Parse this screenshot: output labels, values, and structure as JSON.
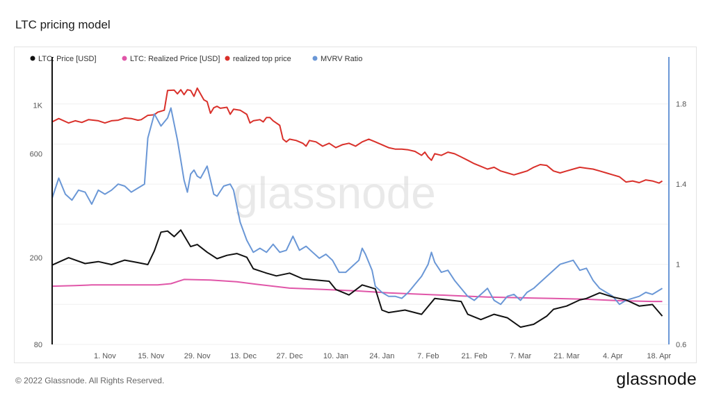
{
  "page": {
    "title": "LTC pricing model",
    "footer": "© 2022 Glassnode. All Rights Reserved.",
    "brand": "glassnode",
    "watermark": "glassnode"
  },
  "chart_data": {
    "type": "line",
    "legend_position": "top-left",
    "grid": "horizontal",
    "x_ticks": [
      "1. Nov",
      "15. Nov",
      "29. Nov",
      "13. Dec",
      "27. Dec",
      "10. Jan",
      "24. Jan",
      "7. Feb",
      "21. Feb",
      "7. Mar",
      "21. Mar",
      "4. Apr",
      "18. Apr"
    ],
    "x_tick_days": [
      14,
      28,
      42,
      56,
      70,
      84,
      98,
      112,
      126,
      140,
      154,
      168,
      182
    ],
    "x_range_days": [
      -2,
      185
    ],
    "x_start_date": "2021-10-20",
    "y_left": {
      "scale": "log",
      "range": [
        80,
        1550
      ],
      "ticks": [
        80,
        200,
        600,
        1000
      ],
      "tick_labels": [
        "80",
        "200",
        "600",
        "1K"
      ]
    },
    "y_right": {
      "scale": "linear",
      "range": [
        0.6,
        2.0
      ],
      "ticks": [
        0.6,
        1.0,
        1.4,
        1.8
      ],
      "tick_labels": [
        "0.6",
        "1",
        "1.4",
        "1.8"
      ]
    },
    "series": [
      {
        "name": "LTC: Price [USD]",
        "color": "#111111",
        "axis": "left",
        "points": [
          [
            -2,
            185
          ],
          [
            3,
            200
          ],
          [
            8,
            188
          ],
          [
            12,
            192
          ],
          [
            16,
            186
          ],
          [
            20,
            195
          ],
          [
            24,
            190
          ],
          [
            27,
            186
          ],
          [
            29,
            215
          ],
          [
            31,
            262
          ],
          [
            33,
            265
          ],
          [
            35,
            250
          ],
          [
            37,
            268
          ],
          [
            40,
            225
          ],
          [
            42,
            230
          ],
          [
            45,
            212
          ],
          [
            48,
            198
          ],
          [
            51,
            205
          ],
          [
            54,
            209
          ],
          [
            57,
            201
          ],
          [
            59,
            178
          ],
          [
            63,
            170
          ],
          [
            66,
            165
          ],
          [
            70,
            170
          ],
          [
            74,
            160
          ],
          [
            78,
            158
          ],
          [
            82,
            156
          ],
          [
            84,
            143
          ],
          [
            88,
            135
          ],
          [
            92,
            150
          ],
          [
            96,
            144
          ],
          [
            98,
            115
          ],
          [
            100,
            112
          ],
          [
            105,
            115
          ],
          [
            110,
            110
          ],
          [
            114,
            130
          ],
          [
            118,
            128
          ],
          [
            122,
            126
          ],
          [
            124,
            110
          ],
          [
            128,
            104
          ],
          [
            132,
            110
          ],
          [
            136,
            106
          ],
          [
            140,
            96
          ],
          [
            144,
            99
          ],
          [
            148,
            108
          ],
          [
            150,
            116
          ],
          [
            154,
            120
          ],
          [
            158,
            128
          ],
          [
            160,
            130
          ],
          [
            164,
            138
          ],
          [
            168,
            132
          ],
          [
            172,
            128
          ],
          [
            176,
            120
          ],
          [
            180,
            122
          ],
          [
            183,
            108
          ]
        ]
      },
      {
        "name": "LTC: Realized Price [USD]",
        "color": "#e056a8",
        "axis": "left",
        "points": [
          [
            -2,
            148
          ],
          [
            5,
            149
          ],
          [
            10,
            150
          ],
          [
            20,
            150
          ],
          [
            30,
            150
          ],
          [
            34,
            152
          ],
          [
            38,
            159
          ],
          [
            46,
            158
          ],
          [
            54,
            155
          ],
          [
            60,
            151
          ],
          [
            70,
            145
          ],
          [
            80,
            143
          ],
          [
            90,
            141
          ],
          [
            100,
            138
          ],
          [
            110,
            136
          ],
          [
            120,
            134
          ],
          [
            130,
            132
          ],
          [
            140,
            131
          ],
          [
            150,
            130
          ],
          [
            160,
            129
          ],
          [
            170,
            127
          ],
          [
            180,
            126
          ],
          [
            183,
            126
          ]
        ]
      },
      {
        "name": "realized top price",
        "color": "#d9302a",
        "axis": "left",
        "points": [
          [
            -2,
            840
          ],
          [
            0,
            870
          ],
          [
            3,
            830
          ],
          [
            5,
            850
          ],
          [
            7,
            835
          ],
          [
            9,
            860
          ],
          [
            12,
            850
          ],
          [
            14,
            830
          ],
          [
            16,
            850
          ],
          [
            18,
            855
          ],
          [
            20,
            875
          ],
          [
            22,
            870
          ],
          [
            24,
            855
          ],
          [
            25,
            860
          ],
          [
            27,
            900
          ],
          [
            29,
            905
          ],
          [
            30,
            930
          ],
          [
            32,
            950
          ],
          [
            33,
            1170
          ],
          [
            35,
            1175
          ],
          [
            36,
            1130
          ],
          [
            37,
            1180
          ],
          [
            38,
            1120
          ],
          [
            39,
            1180
          ],
          [
            40,
            1170
          ],
          [
            41,
            1100
          ],
          [
            42,
            1200
          ],
          [
            44,
            1060
          ],
          [
            45,
            1040
          ],
          [
            46,
            920
          ],
          [
            47,
            975
          ],
          [
            48,
            990
          ],
          [
            49,
            970
          ],
          [
            51,
            980
          ],
          [
            52,
            910
          ],
          [
            53,
            960
          ],
          [
            55,
            950
          ],
          [
            57,
            910
          ],
          [
            58,
            830
          ],
          [
            59,
            850
          ],
          [
            61,
            860
          ],
          [
            62,
            840
          ],
          [
            63,
            880
          ],
          [
            64,
            880
          ],
          [
            65,
            850
          ],
          [
            67,
            810
          ],
          [
            68,
            700
          ],
          [
            69,
            680
          ],
          [
            70,
            700
          ],
          [
            72,
            690
          ],
          [
            74,
            670
          ],
          [
            75,
            650
          ],
          [
            76,
            690
          ],
          [
            78,
            680
          ],
          [
            80,
            650
          ],
          [
            82,
            670
          ],
          [
            84,
            640
          ],
          [
            86,
            660
          ],
          [
            88,
            670
          ],
          [
            90,
            650
          ],
          [
            92,
            680
          ],
          [
            94,
            700
          ],
          [
            96,
            680
          ],
          [
            98,
            660
          ],
          [
            100,
            640
          ],
          [
            102,
            630
          ],
          [
            104,
            630
          ],
          [
            106,
            625
          ],
          [
            108,
            615
          ],
          [
            110,
            590
          ],
          [
            111,
            610
          ],
          [
            112,
            580
          ],
          [
            113,
            560
          ],
          [
            114,
            600
          ],
          [
            116,
            590
          ],
          [
            118,
            610
          ],
          [
            120,
            600
          ],
          [
            122,
            580
          ],
          [
            124,
            560
          ],
          [
            126,
            540
          ],
          [
            128,
            525
          ],
          [
            130,
            510
          ],
          [
            132,
            520
          ],
          [
            134,
            500
          ],
          [
            136,
            490
          ],
          [
            138,
            480
          ],
          [
            140,
            490
          ],
          [
            142,
            500
          ],
          [
            144,
            520
          ],
          [
            146,
            535
          ],
          [
            148,
            530
          ],
          [
            150,
            500
          ],
          [
            152,
            490
          ],
          [
            154,
            500
          ],
          [
            156,
            510
          ],
          [
            158,
            520
          ],
          [
            160,
            515
          ],
          [
            162,
            510
          ],
          [
            164,
            500
          ],
          [
            166,
            490
          ],
          [
            168,
            480
          ],
          [
            170,
            470
          ],
          [
            172,
            445
          ],
          [
            174,
            450
          ],
          [
            176,
            442
          ],
          [
            178,
            455
          ],
          [
            180,
            450
          ],
          [
            182,
            440
          ],
          [
            183,
            450
          ]
        ]
      },
      {
        "name": "MVRV Ratio",
        "color": "#6a97d6",
        "axis": "right",
        "points": [
          [
            -2,
            1.33
          ],
          [
            0,
            1.43
          ],
          [
            2,
            1.35
          ],
          [
            4,
            1.32
          ],
          [
            6,
            1.37
          ],
          [
            8,
            1.36
          ],
          [
            10,
            1.3
          ],
          [
            12,
            1.37
          ],
          [
            14,
            1.35
          ],
          [
            16,
            1.37
          ],
          [
            18,
            1.4
          ],
          [
            20,
            1.39
          ],
          [
            22,
            1.36
          ],
          [
            24,
            1.38
          ],
          [
            26,
            1.4
          ],
          [
            27,
            1.63
          ],
          [
            29,
            1.75
          ],
          [
            30,
            1.72
          ],
          [
            31,
            1.69
          ],
          [
            33,
            1.73
          ],
          [
            34,
            1.78
          ],
          [
            35,
            1.7
          ],
          [
            36,
            1.62
          ],
          [
            37,
            1.52
          ],
          [
            38,
            1.42
          ],
          [
            39,
            1.36
          ],
          [
            40,
            1.45
          ],
          [
            41,
            1.47
          ],
          [
            42,
            1.44
          ],
          [
            43,
            1.43
          ],
          [
            44,
            1.46
          ],
          [
            45,
            1.49
          ],
          [
            46,
            1.42
          ],
          [
            47,
            1.35
          ],
          [
            48,
            1.34
          ],
          [
            50,
            1.39
          ],
          [
            52,
            1.4
          ],
          [
            53,
            1.37
          ],
          [
            54,
            1.29
          ],
          [
            55,
            1.21
          ],
          [
            57,
            1.12
          ],
          [
            59,
            1.06
          ],
          [
            61,
            1.08
          ],
          [
            63,
            1.06
          ],
          [
            65,
            1.1
          ],
          [
            67,
            1.06
          ],
          [
            69,
            1.07
          ],
          [
            71,
            1.14
          ],
          [
            73,
            1.07
          ],
          [
            75,
            1.09
          ],
          [
            77,
            1.06
          ],
          [
            79,
            1.03
          ],
          [
            81,
            1.05
          ],
          [
            83,
            1.02
          ],
          [
            85,
            0.96
          ],
          [
            87,
            0.96
          ],
          [
            89,
            0.99
          ],
          [
            91,
            1.02
          ],
          [
            92,
            1.08
          ],
          [
            93,
            1.05
          ],
          [
            95,
            0.97
          ],
          [
            96,
            0.89
          ],
          [
            98,
            0.86
          ],
          [
            100,
            0.84
          ],
          [
            102,
            0.84
          ],
          [
            104,
            0.83
          ],
          [
            106,
            0.86
          ],
          [
            108,
            0.9
          ],
          [
            110,
            0.94
          ],
          [
            112,
            1.0
          ],
          [
            113,
            1.06
          ],
          [
            114,
            1.01
          ],
          [
            116,
            0.96
          ],
          [
            118,
            0.97
          ],
          [
            120,
            0.92
          ],
          [
            122,
            0.88
          ],
          [
            124,
            0.84
          ],
          [
            126,
            0.82
          ],
          [
            128,
            0.85
          ],
          [
            130,
            0.88
          ],
          [
            132,
            0.82
          ],
          [
            134,
            0.8
          ],
          [
            136,
            0.84
          ],
          [
            138,
            0.85
          ],
          [
            140,
            0.82
          ],
          [
            142,
            0.86
          ],
          [
            144,
            0.88
          ],
          [
            146,
            0.91
          ],
          [
            148,
            0.94
          ],
          [
            150,
            0.97
          ],
          [
            152,
            1.0
          ],
          [
            154,
            1.01
          ],
          [
            156,
            1.02
          ],
          [
            158,
            0.97
          ],
          [
            160,
            0.98
          ],
          [
            162,
            0.92
          ],
          [
            164,
            0.88
          ],
          [
            166,
            0.86
          ],
          [
            168,
            0.84
          ],
          [
            170,
            0.8
          ],
          [
            172,
            0.82
          ],
          [
            174,
            0.83
          ],
          [
            176,
            0.84
          ],
          [
            178,
            0.86
          ],
          [
            180,
            0.85
          ],
          [
            182,
            0.87
          ],
          [
            183,
            0.88
          ]
        ]
      }
    ]
  }
}
